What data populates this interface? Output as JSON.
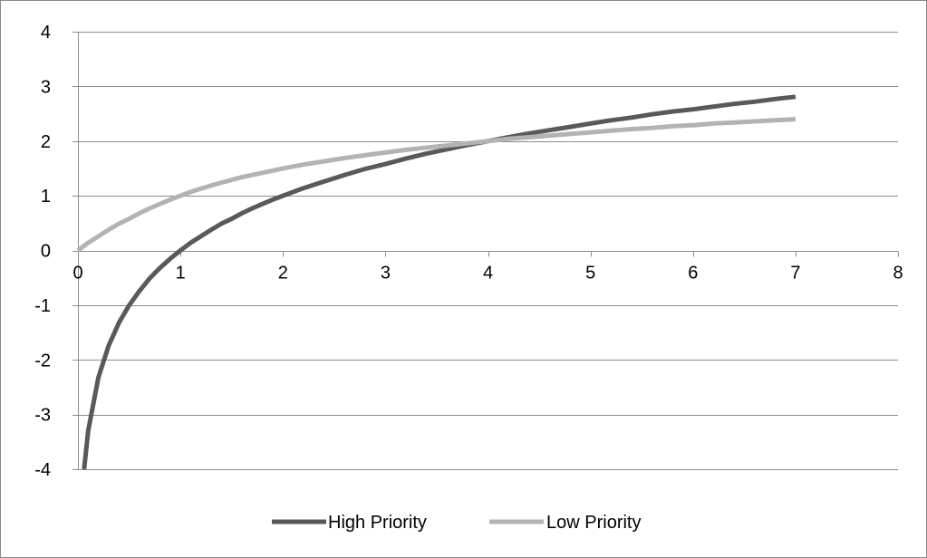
{
  "chart_data": {
    "type": "line",
    "xlim": [
      0,
      8
    ],
    "ylim": [
      -4,
      4
    ],
    "x_ticks": [
      "0",
      "1",
      "2",
      "3",
      "4",
      "5",
      "6",
      "7",
      "8"
    ],
    "y_ticks": [
      "4",
      "3",
      "2",
      "1",
      "0",
      "-1",
      "-2",
      "-3",
      "-4"
    ],
    "grid": "horizontal",
    "legend_position": "bottom",
    "series": [
      {
        "name": "High Priority",
        "color": "#595959",
        "x": [
          0.06,
          0.1,
          0.2,
          0.3,
          0.4,
          0.5,
          0.6,
          0.7,
          0.8,
          0.9,
          1.0,
          1.1,
          1.2,
          1.3,
          1.4,
          1.5,
          1.6,
          1.7,
          1.8,
          1.9,
          2.0,
          2.2,
          2.4,
          2.6,
          2.8,
          3.0,
          3.2,
          3.4,
          3.6,
          3.8,
          4.0,
          4.2,
          4.4,
          4.6,
          4.8,
          5.0,
          5.2,
          5.4,
          5.6,
          5.8,
          6.0,
          6.2,
          6.4,
          6.6,
          6.8,
          7.0
        ],
        "values": [
          -4.0,
          -3.3,
          -2.32,
          -1.74,
          -1.32,
          -1.0,
          -0.74,
          -0.51,
          -0.32,
          -0.15,
          0.0,
          0.14,
          0.26,
          0.38,
          0.49,
          0.58,
          0.68,
          0.77,
          0.85,
          0.93,
          1.0,
          1.14,
          1.26,
          1.38,
          1.49,
          1.58,
          1.68,
          1.77,
          1.85,
          1.93,
          2.0,
          2.07,
          2.14,
          2.2,
          2.26,
          2.32,
          2.38,
          2.43,
          2.49,
          2.54,
          2.58,
          2.63,
          2.68,
          2.72,
          2.77,
          2.81
        ]
      },
      {
        "name": "Low Priority",
        "color": "#b3b3b3",
        "x": [
          0.0,
          0.1,
          0.2,
          0.3,
          0.4,
          0.5,
          0.6,
          0.7,
          0.8,
          0.9,
          1.0,
          1.1,
          1.2,
          1.3,
          1.4,
          1.5,
          1.6,
          1.7,
          1.8,
          1.9,
          2.0,
          2.2,
          2.4,
          2.6,
          2.8,
          3.0,
          3.2,
          3.4,
          3.6,
          3.8,
          4.0,
          4.2,
          4.4,
          4.6,
          4.8,
          5.0,
          5.2,
          5.4,
          5.6,
          5.8,
          6.0,
          6.2,
          6.4,
          6.6,
          6.8,
          7.0
        ],
        "values": [
          0.0,
          0.14,
          0.26,
          0.38,
          0.49,
          0.58,
          0.68,
          0.77,
          0.85,
          0.93,
          1.0,
          1.07,
          1.13,
          1.19,
          1.24,
          1.29,
          1.34,
          1.38,
          1.42,
          1.46,
          1.5,
          1.57,
          1.63,
          1.69,
          1.74,
          1.79,
          1.84,
          1.88,
          1.92,
          1.96,
          2.0,
          2.04,
          2.07,
          2.1,
          2.13,
          2.16,
          2.19,
          2.22,
          2.24,
          2.27,
          2.29,
          2.32,
          2.34,
          2.36,
          2.38,
          2.4
        ]
      }
    ]
  }
}
